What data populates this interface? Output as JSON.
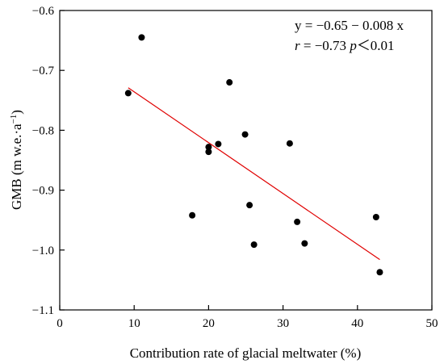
{
  "chart_data": {
    "type": "scatter",
    "xlabel": "Contribution rate of glacial meltwater (%)",
    "ylabel_main": "GMB (m w.e.·a",
    "ylabel_sup": "−1",
    "ylabel_close": ")",
    "xlim": [
      0,
      50
    ],
    "ylim": [
      -1.1,
      -0.6
    ],
    "xticks": [
      0,
      10,
      20,
      30,
      40,
      50
    ],
    "xtick_labels": [
      "0",
      "10",
      "20",
      "30",
      "40",
      "50"
    ],
    "yticks": [
      -1.1,
      -1.0,
      -0.9,
      -0.8,
      -0.7,
      -0.6
    ],
    "ytick_labels": [
      "−1.1",
      "−1.0",
      "−0.9",
      "−0.8",
      "−0.7",
      "−0.6"
    ],
    "grid": false,
    "legend": "none",
    "point_color": "#000000",
    "fit_color": "#e00000",
    "points": [
      {
        "x": 9.2,
        "y": -0.738
      },
      {
        "x": 11.0,
        "y": -0.645
      },
      {
        "x": 17.8,
        "y": -0.942
      },
      {
        "x": 20.0,
        "y": -0.828
      },
      {
        "x": 20.0,
        "y": -0.836
      },
      {
        "x": 21.3,
        "y": -0.823
      },
      {
        "x": 22.8,
        "y": -0.72
      },
      {
        "x": 24.9,
        "y": -0.807
      },
      {
        "x": 25.5,
        "y": -0.925
      },
      {
        "x": 26.1,
        "y": -0.991
      },
      {
        "x": 30.9,
        "y": -0.822
      },
      {
        "x": 31.9,
        "y": -0.953
      },
      {
        "x": 32.9,
        "y": -0.989
      },
      {
        "x": 42.5,
        "y": -0.945
      },
      {
        "x": 43.0,
        "y": -1.037
      }
    ],
    "fit_line": {
      "x": [
        9.2,
        43.0
      ],
      "y": [
        -0.729,
        -1.016
      ]
    },
    "annotation": {
      "equation": "y = −0.65 − 0.008 x",
      "r_symbol": "r",
      "r_text": " = −0.73 ",
      "p_symbol": "p",
      "p_text": "＜0.01"
    }
  }
}
